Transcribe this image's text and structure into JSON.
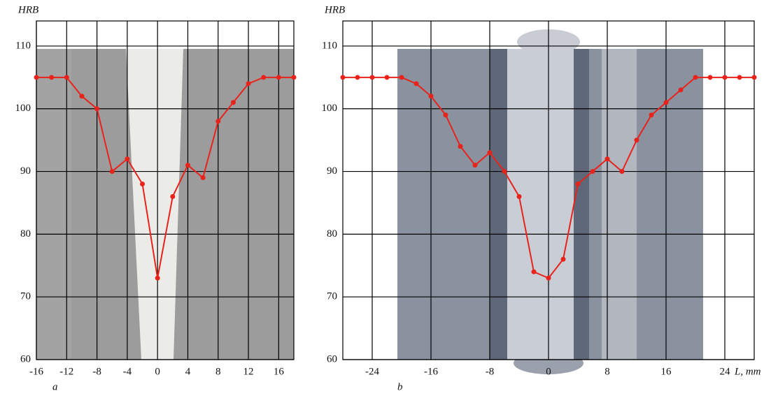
{
  "chart_data": [
    {
      "type": "line",
      "panel_label": "a",
      "y_label": "HRB",
      "x": [
        -16,
        -14,
        -12,
        -10,
        -8,
        -6,
        -4,
        -2,
        0,
        2,
        4,
        6,
        8,
        10,
        12,
        14,
        16,
        18
      ],
      "series": [
        {
          "color": "#e8231c",
          "values": [
            105,
            105,
            105,
            102,
            100,
            90,
            92,
            88,
            73,
            86,
            91,
            89,
            98,
            101,
            104,
            105,
            105,
            105
          ]
        }
      ],
      "xlim": [
        -16,
        18
      ],
      "ylim": [
        60,
        114
      ],
      "xticks": [
        -16,
        -12,
        -8,
        -4,
        0,
        4,
        8,
        12,
        16
      ],
      "yticks": [
        60,
        70,
        80,
        90,
        100,
        110
      ],
      "grid": true
    },
    {
      "type": "line",
      "panel_label": "b",
      "y_label": "HRB",
      "x_label": "L, mm",
      "x": [
        -28,
        -26,
        -24,
        -22,
        -20,
        -18,
        -16,
        -14,
        -12,
        -10,
        -8,
        -6,
        -4,
        -2,
        0,
        2,
        4,
        6,
        8,
        10,
        12,
        14,
        16,
        18,
        20,
        22,
        24,
        26,
        28
      ],
      "series": [
        {
          "color": "#e8231c",
          "values": [
            105,
            105,
            105,
            105,
            105,
            104,
            102,
            99,
            94,
            91,
            93,
            90,
            86,
            74,
            73,
            76,
            88,
            90,
            92,
            90,
            95,
            99,
            101,
            103,
            105,
            105,
            105,
            105,
            105
          ]
        }
      ],
      "xlim": [
        -28,
        28
      ],
      "ylim": [
        60,
        114
      ],
      "xticks": [
        -24,
        -16,
        -8,
        0,
        8,
        16,
        24
      ],
      "yticks": [
        60,
        70,
        80,
        90,
        100,
        110
      ],
      "grid": true
    }
  ]
}
